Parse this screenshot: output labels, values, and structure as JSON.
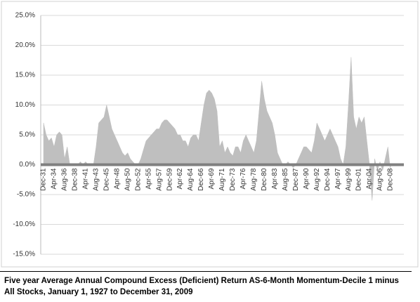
{
  "chart_data": {
    "type": "area",
    "title": "Five year Average Annual Compound Excess (Deficient) Return AS-6-Month Momentum-Decile 1 minus All Stocks, January 1, 1927 to December 31, 2009",
    "color": "#bfbfbf",
    "categories": [
      "Dec-31",
      null,
      null,
      null,
      "Apr-34",
      null,
      null,
      null,
      "Aug-36",
      null,
      null,
      null,
      "Dec-38",
      null,
      null,
      null,
      "Apr-41",
      null,
      null,
      null,
      "Aug-43",
      null,
      null,
      null,
      "Dec-45",
      null,
      null,
      null,
      "Apr-48",
      null,
      null,
      null,
      "Aug-50",
      null,
      null,
      null,
      "Dec-52",
      null,
      null,
      null,
      "Apr-55",
      null,
      null,
      null,
      "Aug-57",
      null,
      null,
      null,
      "Dec-59",
      null,
      null,
      null,
      "Apr-62",
      null,
      null,
      null,
      "Aug-64",
      null,
      null,
      null,
      "Dec-66",
      null,
      null,
      null,
      "Apr-69",
      null,
      null,
      null,
      "Aug-71",
      null,
      null,
      null,
      "Dec-73",
      null,
      null,
      null,
      "Apr-76",
      null,
      null,
      null,
      "Aug-78",
      null,
      null,
      null,
      "Dec-80",
      null,
      null,
      null,
      "Apr-83",
      null,
      null,
      null,
      "Aug-85",
      null,
      null,
      null,
      "Dec-87",
      null,
      null,
      null,
      "Apr-90",
      null,
      null,
      null,
      "Aug-92",
      null,
      null,
      null,
      "Dec-94",
      null,
      null,
      null,
      "Apr-97",
      null,
      null,
      null,
      "Aug-99",
      null,
      null,
      null,
      "Dec-01",
      null,
      null,
      null,
      "Apr-04",
      null,
      null,
      null,
      "Aug-06",
      null,
      null,
      null,
      "Dec-08"
    ],
    "values": [
      7,
      5,
      4,
      4.5,
      3,
      5,
      5.5,
      5,
      1,
      3,
      0,
      0,
      0,
      0,
      0.5,
      0,
      0.5,
      0,
      0,
      0,
      3,
      7,
      7.5,
      8,
      10,
      8,
      6,
      5,
      4,
      3,
      2,
      1.5,
      2,
      1,
      0.5,
      0,
      0,
      1,
      2.5,
      4,
      4.5,
      5,
      5.5,
      6,
      6,
      7,
      7.5,
      7.5,
      7,
      6.5,
      6,
      5,
      5,
      4,
      4,
      3,
      4.5,
      5,
      5,
      4,
      7,
      10,
      12,
      12.5,
      12,
      11,
      9,
      3,
      4,
      2,
      3,
      2,
      1.5,
      3,
      3,
      2,
      4,
      5,
      4,
      3,
      2,
      4,
      9,
      14,
      11,
      9,
      8,
      7,
      5,
      2,
      1,
      0,
      0,
      0.5,
      0,
      -0.5,
      0,
      1,
      2,
      3,
      3,
      2.5,
      2,
      4,
      7,
      6,
      5,
      4,
      5,
      6,
      5,
      4,
      3,
      1,
      0,
      3,
      10,
      18,
      8,
      6,
      8,
      7,
      8,
      4,
      0,
      -6,
      1,
      -1,
      0.5,
      -1,
      1,
      3,
      -1
    ],
    "ylim": [
      -15,
      25
    ],
    "yticks": [
      {
        "value": -15,
        "label": "-15.0%"
      },
      {
        "value": -10,
        "label": "-10.0%"
      },
      {
        "value": -5,
        "label": "-5.0%"
      },
      {
        "value": 0,
        "label": "0.0%"
      },
      {
        "value": 5,
        "label": "5.0%"
      },
      {
        "value": 10,
        "label": "10.0%"
      },
      {
        "value": 15,
        "label": "15.0%"
      },
      {
        "value": 20,
        "label": "20.0%"
      },
      {
        "value": 25,
        "label": "25.0%"
      }
    ],
    "grid": true
  }
}
